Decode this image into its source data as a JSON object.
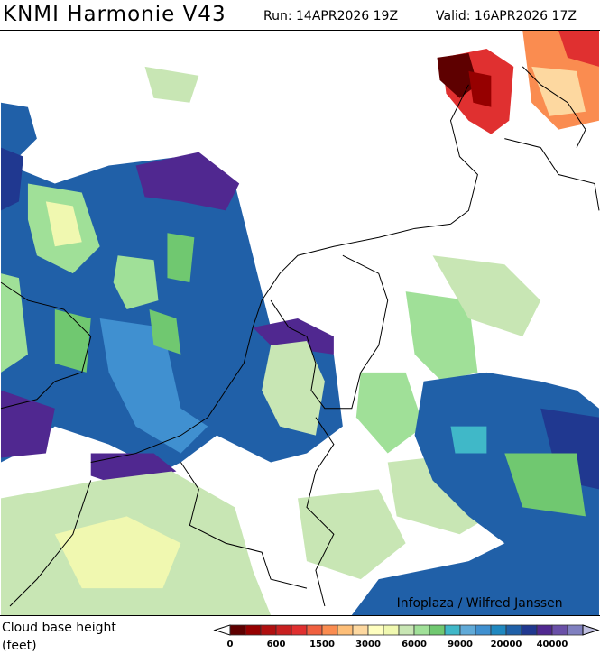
{
  "header": {
    "title": "KNMI Harmonie V43",
    "run": "Run: 14APR2026 19Z",
    "valid": "Valid: 16APR2026 17Z"
  },
  "map": {
    "credit": "Infoplaza / Wilfred Janssen"
  },
  "legend": {
    "title_line1": "Cloud base height",
    "title_line2": "(feet)",
    "tick_labels": [
      "0",
      "600",
      "1500",
      "3000",
      "6000",
      "9000",
      "20000",
      "40000"
    ],
    "colors": [
      "#5e0000",
      "#960000",
      "#b01010",
      "#c82020",
      "#e03030",
      "#f06040",
      "#fa8c50",
      "#fdbe78",
      "#fdd8a0",
      "#ffffc0",
      "#f0f8b0",
      "#c8e6b4",
      "#a0e098",
      "#70c870",
      "#40b8c8",
      "#60aad8",
      "#4090d0",
      "#2088c0",
      "#2060a8",
      "#203890",
      "#502890",
      "#6a50a8",
      "#8080c0"
    ],
    "under_color": "#ffffff",
    "over_color": "#c0c0e0"
  }
}
